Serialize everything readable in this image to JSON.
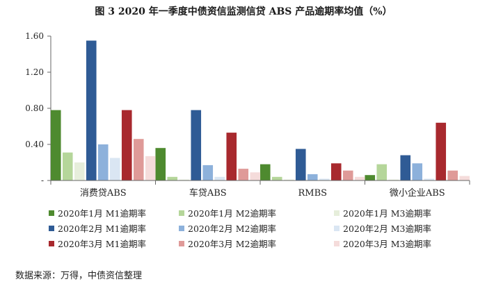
{
  "title": "图 3 2020 年一季度中债资信监测信贷 ABS 产品逾期率均值（%）",
  "source": "数据来源：万得，中债资信整理",
  "chart_data": {
    "type": "bar",
    "categories": [
      "消费贷ABS",
      "车贷ABS",
      "RMBS",
      "微小企业ABS"
    ],
    "ylim": [
      0,
      1.6
    ],
    "yticks": [
      {
        "value": 0,
        "label": "-"
      },
      {
        "value": 0.4,
        "label": "0.40"
      },
      {
        "value": 0.8,
        "label": "0.80"
      },
      {
        "value": 1.2,
        "label": "1.20"
      },
      {
        "value": 1.6,
        "label": "1.60"
      }
    ],
    "grid": false,
    "legend_position": "bottom",
    "series": [
      {
        "name": "2020年1月  M1逾期率",
        "color": "#4e8a2f",
        "values": [
          0.78,
          0.36,
          0.18,
          0.06
        ]
      },
      {
        "name": "2020年1月  M2逾期率",
        "color": "#b5d69a",
        "values": [
          0.31,
          0.04,
          0.04,
          0.18
        ]
      },
      {
        "name": "2020年1月  M3逾期率",
        "color": "#e6eedb",
        "values": [
          0.2,
          0.01,
          0.01,
          0.01
        ]
      },
      {
        "name": "2020年2月  M1逾期率",
        "color": "#2f5b95",
        "values": [
          1.55,
          0.78,
          0.35,
          0.28
        ]
      },
      {
        "name": "2020年2月  M2逾期率",
        "color": "#8db1db",
        "values": [
          0.4,
          0.17,
          0.07,
          0.19
        ]
      },
      {
        "name": "2020年2月  M3逾期率",
        "color": "#dae6f3",
        "values": [
          0.25,
          0.04,
          0.02,
          0.02
        ]
      },
      {
        "name": "2020年3月  M1逾期率",
        "color": "#a8292e",
        "values": [
          0.78,
          0.53,
          0.19,
          0.64
        ]
      },
      {
        "name": "2020年3月  M2逾期率",
        "color": "#df9a98",
        "values": [
          0.46,
          0.13,
          0.11,
          0.11
        ]
      },
      {
        "name": "2020年3月  M3逾期率",
        "color": "#f5dcdb",
        "values": [
          0.27,
          0.09,
          0.04,
          0.05
        ]
      }
    ]
  }
}
